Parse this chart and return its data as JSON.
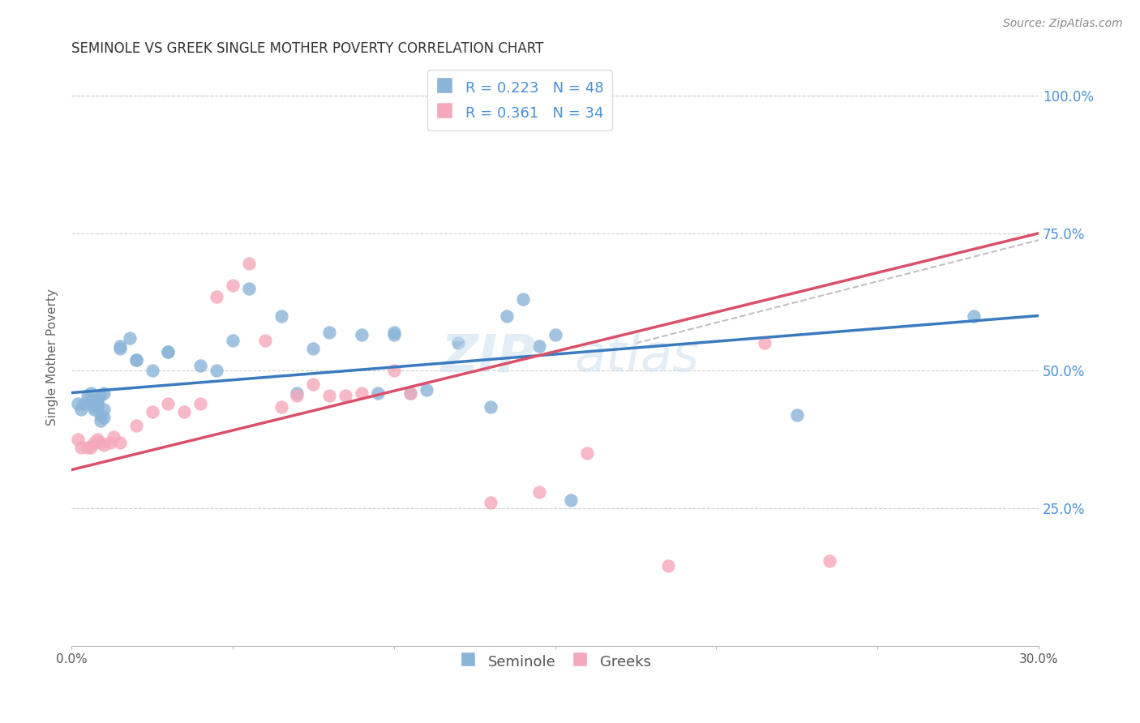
{
  "title": "SEMINOLE VS GREEK SINGLE MOTHER POVERTY CORRELATION CHART",
  "source": "Source: ZipAtlas.com",
  "ylabel": "Single Mother Poverty",
  "xlim": [
    0.0,
    0.3
  ],
  "ylim": [
    0.0,
    1.05
  ],
  "seminole_R": 0.223,
  "seminole_N": 48,
  "greek_R": 0.361,
  "greek_N": 34,
  "seminole_color": "#8ab4d8",
  "greek_color": "#f5a8bb",
  "seminole_line_color": "#3a7bbf",
  "greek_line_color": "#d9506a",
  "dashed_line_color": "#c0c0c0",
  "background_color": "#ffffff",
  "grid_color": "#d0d0d0",
  "seminole_x": [
    0.002,
    0.003,
    0.004,
    0.005,
    0.006,
    0.006,
    0.007,
    0.007,
    0.008,
    0.008,
    0.008,
    0.009,
    0.009,
    0.009,
    0.01,
    0.01,
    0.01,
    0.015,
    0.015,
    0.018,
    0.02,
    0.02,
    0.025,
    0.03,
    0.03,
    0.04,
    0.045,
    0.05,
    0.055,
    0.065,
    0.07,
    0.075,
    0.08,
    0.09,
    0.095,
    0.1,
    0.1,
    0.105,
    0.11,
    0.12,
    0.13,
    0.135,
    0.14,
    0.145,
    0.15,
    0.155,
    0.225,
    0.28
  ],
  "seminole_y": [
    0.44,
    0.43,
    0.44,
    0.455,
    0.445,
    0.46,
    0.435,
    0.43,
    0.435,
    0.44,
    0.445,
    0.455,
    0.42,
    0.41,
    0.415,
    0.43,
    0.46,
    0.545,
    0.54,
    0.56,
    0.52,
    0.52,
    0.5,
    0.535,
    0.535,
    0.51,
    0.5,
    0.555,
    0.65,
    0.6,
    0.46,
    0.54,
    0.57,
    0.565,
    0.46,
    0.565,
    0.57,
    0.46,
    0.465,
    0.55,
    0.435,
    0.6,
    0.63,
    0.545,
    0.565,
    0.265,
    0.42,
    0.6
  ],
  "greek_x": [
    0.002,
    0.003,
    0.005,
    0.006,
    0.007,
    0.008,
    0.009,
    0.01,
    0.012,
    0.013,
    0.015,
    0.02,
    0.025,
    0.03,
    0.035,
    0.04,
    0.045,
    0.05,
    0.055,
    0.06,
    0.065,
    0.07,
    0.075,
    0.08,
    0.085,
    0.09,
    0.1,
    0.105,
    0.13,
    0.145,
    0.16,
    0.185,
    0.215,
    0.235
  ],
  "greek_y": [
    0.375,
    0.36,
    0.36,
    0.36,
    0.37,
    0.375,
    0.37,
    0.365,
    0.37,
    0.38,
    0.37,
    0.4,
    0.425,
    0.44,
    0.425,
    0.44,
    0.635,
    0.655,
    0.695,
    0.555,
    0.435,
    0.455,
    0.475,
    0.455,
    0.455,
    0.46,
    0.5,
    0.46,
    0.26,
    0.28,
    0.35,
    0.145,
    0.55,
    0.155
  ],
  "watermark_line1": "ZIP",
  "watermark_line2": "atlas",
  "title_fontsize": 12,
  "axis_fontsize": 10,
  "legend_fontsize": 13
}
